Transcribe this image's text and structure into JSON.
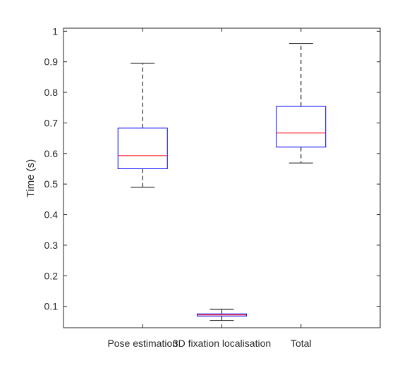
{
  "chart_data": {
    "type": "box",
    "categories": [
      "Pose estimation",
      "3D fixation localisation",
      "Total"
    ],
    "ylabel": "Time (s)",
    "xlabel": "",
    "title": "",
    "ylim": [
      0.03,
      1.01
    ],
    "yticks": [
      0.1,
      0.2,
      0.3,
      0.4,
      0.5,
      0.6,
      0.7,
      0.8,
      0.9,
      1
    ],
    "ytick_labels": [
      "0.1",
      "0.2",
      "0.3",
      "0.4",
      "0.5",
      "0.6",
      "0.7",
      "0.8",
      "0.9",
      "1"
    ],
    "grid": false,
    "boxes": [
      {
        "name": "Pose estimation",
        "whisker_low": 0.49,
        "q1": 0.55,
        "median": 0.593,
        "q3": 0.683,
        "whisker_high": 0.895
      },
      {
        "name": "3D fixation localisation",
        "whisker_low": 0.054,
        "q1": 0.068,
        "median": 0.072,
        "q3": 0.075,
        "whisker_high": 0.09
      },
      {
        "name": "Total",
        "whisker_low": 0.569,
        "q1": 0.621,
        "median": 0.667,
        "q3": 0.754,
        "whisker_high": 0.96
      }
    ],
    "colors": {
      "box": "#0000ff",
      "median": "#ff0000",
      "whisker": "#000000",
      "axes": "#262626"
    }
  }
}
